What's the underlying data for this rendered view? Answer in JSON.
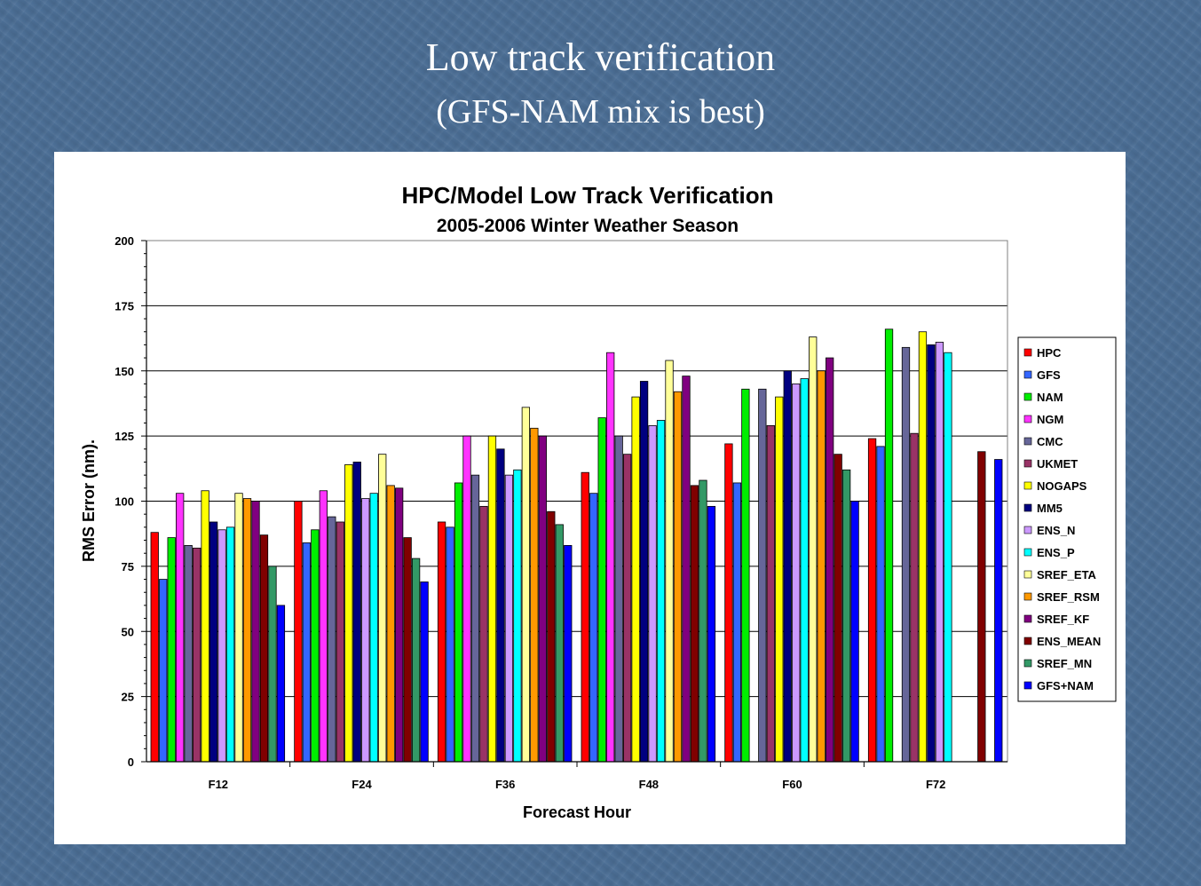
{
  "slide": {
    "title": "Low track verification",
    "subtitle": "(GFS-NAM mix is best)"
  },
  "chart_data": {
    "type": "bar",
    "title": "HPC/Model Low Track Verification",
    "subtitle": "2005-2006 Winter Weather Season",
    "xlabel": "Forecast Hour",
    "ylabel": "RMS Error (nm).",
    "ylim": [
      0,
      200
    ],
    "yticks": [
      0,
      25,
      50,
      75,
      100,
      125,
      150,
      175,
      200
    ],
    "grid": true,
    "legend_position": "right",
    "categories": [
      "F12",
      "F24",
      "F36",
      "F48",
      "F60",
      "F72"
    ],
    "series": [
      {
        "name": "HPC",
        "color": "#ff0000",
        "values": [
          88,
          100,
          92,
          111,
          122,
          124
        ]
      },
      {
        "name": "GFS",
        "color": "#3366ff",
        "values": [
          70,
          84,
          90,
          103,
          107,
          121
        ]
      },
      {
        "name": "NAM",
        "color": "#00ee00",
        "values": [
          86,
          89,
          107,
          132,
          143,
          166
        ]
      },
      {
        "name": "NGM",
        "color": "#ff33ff",
        "values": [
          103,
          104,
          125,
          157,
          null,
          null
        ]
      },
      {
        "name": "CMC",
        "color": "#666699",
        "values": [
          83,
          94,
          110,
          125,
          143,
          159
        ]
      },
      {
        "name": "UKMET",
        "color": "#993366",
        "values": [
          82,
          92,
          98,
          118,
          129,
          126
        ]
      },
      {
        "name": "NOGAPS",
        "color": "#ffff00",
        "values": [
          104,
          114,
          125,
          140,
          140,
          165
        ]
      },
      {
        "name": "MM5",
        "color": "#000080",
        "values": [
          92,
          115,
          120,
          146,
          150,
          160
        ]
      },
      {
        "name": "ENS_N",
        "color": "#cc99ff",
        "values": [
          89,
          101,
          110,
          129,
          145,
          161
        ]
      },
      {
        "name": "ENS_P",
        "color": "#00ffff",
        "values": [
          90,
          103,
          112,
          131,
          147,
          157
        ]
      },
      {
        "name": "SREF_ETA",
        "color": "#ffff99",
        "values": [
          103,
          118,
          136,
          154,
          163,
          null
        ]
      },
      {
        "name": "SREF_RSM",
        "color": "#ff9900",
        "values": [
          101,
          106,
          128,
          142,
          150,
          null
        ]
      },
      {
        "name": "SREF_KF",
        "color": "#800080",
        "values": [
          100,
          105,
          125,
          148,
          155,
          null
        ]
      },
      {
        "name": "ENS_MEAN",
        "color": "#800000",
        "values": [
          87,
          86,
          96,
          106,
          118,
          119
        ]
      },
      {
        "name": "SREF_MN",
        "color": "#339966",
        "values": [
          75,
          78,
          91,
          108,
          112,
          null
        ]
      },
      {
        "name": "GFS+NAM",
        "color": "#0000ff",
        "values": [
          60,
          69,
          83,
          98,
          100,
          116
        ]
      }
    ]
  }
}
